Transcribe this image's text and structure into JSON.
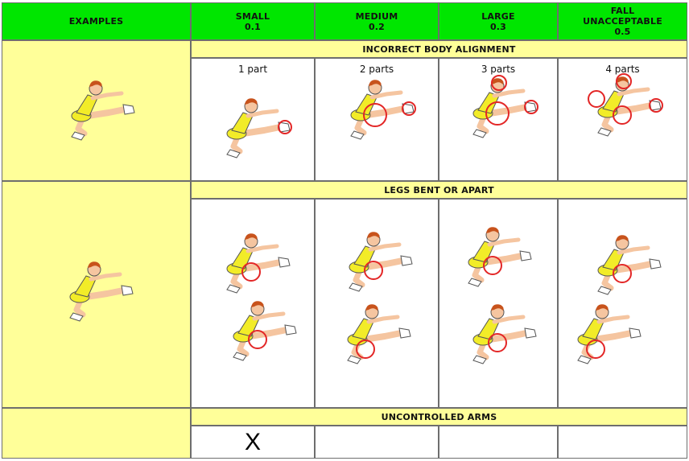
{
  "header": {
    "examples": "EXAMPLES",
    "small": "SMALL\n0.1",
    "medium": "MEDIUM\n0.2",
    "large": "LARGE\n0.3",
    "fall": "FALL\nUNACCEPTABLE\n0.5"
  },
  "sections": [
    {
      "title": "INCORRECT BODY ALIGNMENT",
      "counts": [
        "1 part",
        "2 parts",
        "3 parts",
        "4 parts"
      ]
    },
    {
      "title": "LEGS BENT OR APART"
    },
    {
      "title": "UNCONTROLLED ARMS",
      "marks": [
        "X",
        "",
        "",
        ""
      ]
    }
  ],
  "colors": {
    "header": "#00e600",
    "band": "#ffff99",
    "circle": "#e32626",
    "skin": "#f5c5a0",
    "hair": "#c8531c",
    "shirt": "#f2ec28"
  }
}
